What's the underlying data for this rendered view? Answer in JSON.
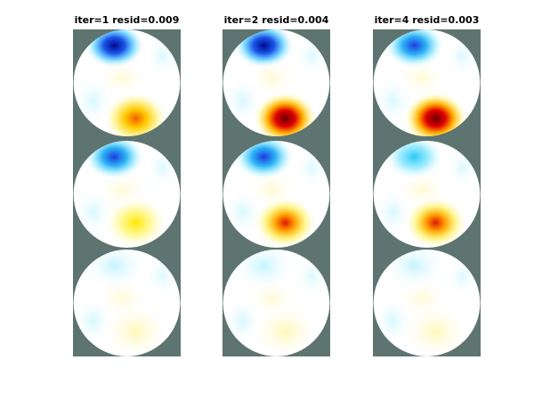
{
  "panels": [
    {
      "title": "iter=1 resid=0.009"
    },
    {
      "title": "iter=2 resid=0.004"
    },
    {
      "title": "iter=4 resid=0.003"
    }
  ]
}
